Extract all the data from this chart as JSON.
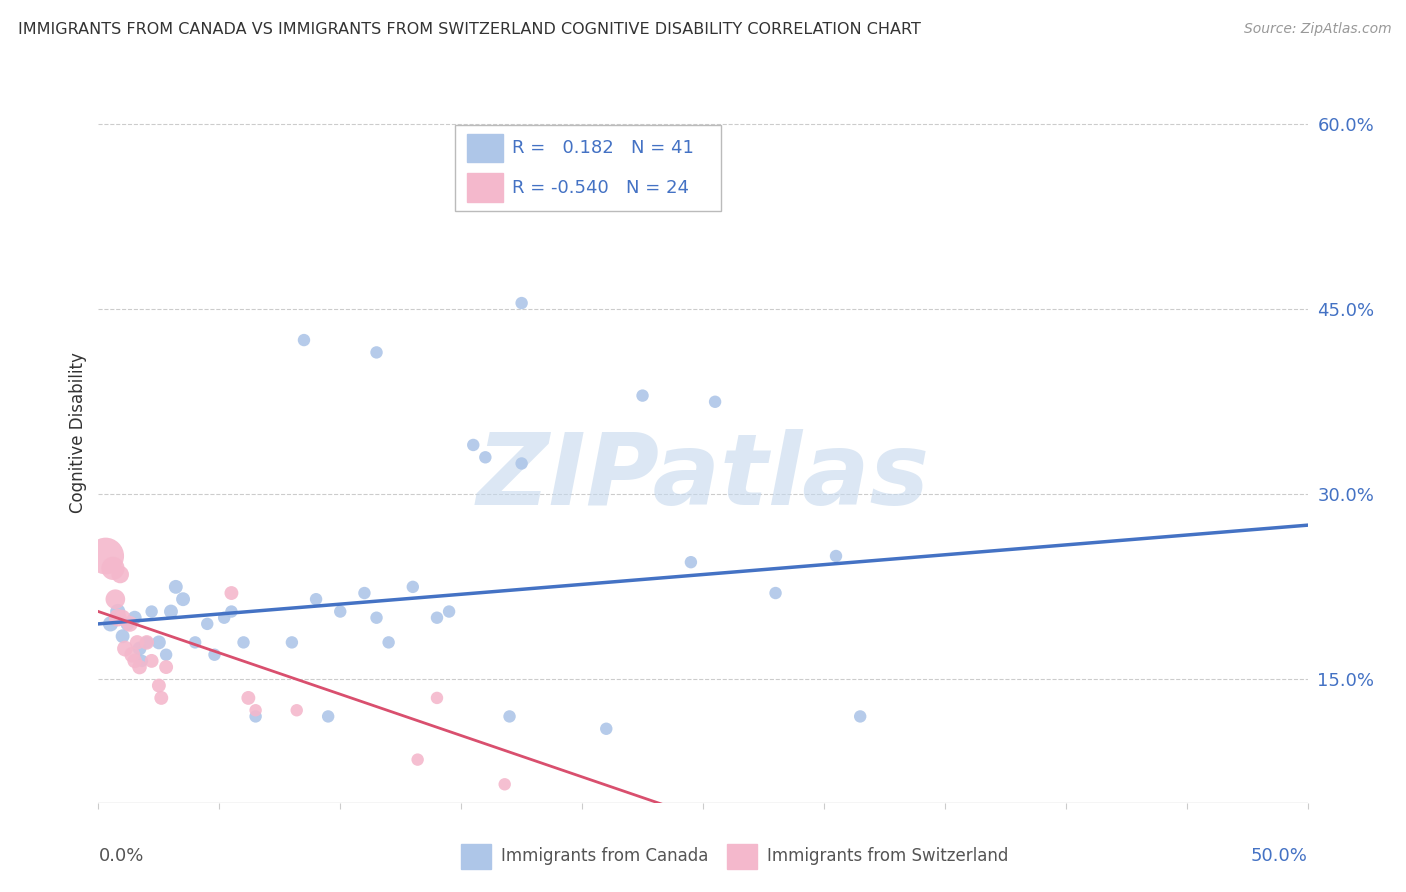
{
  "title": "IMMIGRANTS FROM CANADA VS IMMIGRANTS FROM SWITZERLAND COGNITIVE DISABILITY CORRELATION CHART",
  "source": "Source: ZipAtlas.com",
  "ylabel": "Cognitive Disability",
  "canada_R": "0.182",
  "canada_N": "41",
  "switzerland_R": "-0.540",
  "switzerland_N": "24",
  "canada_color": "#aec6e8",
  "switzerland_color": "#f4b8cc",
  "canada_line_color": "#4472c4",
  "switzerland_line_color": "#d94f6e",
  "background_color": "#ffffff",
  "grid_color": "#cccccc",
  "watermark": "ZIPatlas",
  "xlim": [
    0.0,
    0.5
  ],
  "ylim": [
    0.05,
    0.65
  ],
  "y_ticks": [
    0.15,
    0.3,
    0.45,
    0.6
  ],
  "y_tick_labels": [
    "15.0%",
    "30.0%",
    "45.0%",
    "60.0%"
  ],
  "x_ticks": [
    0.0,
    0.05,
    0.1,
    0.15,
    0.2,
    0.25,
    0.3,
    0.35,
    0.4,
    0.45,
    0.5
  ],
  "canada_trend": [
    0.0,
    0.195,
    0.5,
    0.275
  ],
  "switzerland_trend": [
    0.0,
    0.205,
    0.5,
    -0.13
  ],
  "canada_points": [
    [
      0.005,
      0.195
    ],
    [
      0.008,
      0.205
    ],
    [
      0.01,
      0.185
    ],
    [
      0.012,
      0.195
    ],
    [
      0.015,
      0.2
    ],
    [
      0.017,
      0.175
    ],
    [
      0.018,
      0.165
    ],
    [
      0.02,
      0.18
    ],
    [
      0.022,
      0.205
    ],
    [
      0.025,
      0.18
    ],
    [
      0.028,
      0.17
    ],
    [
      0.03,
      0.205
    ],
    [
      0.032,
      0.225
    ],
    [
      0.035,
      0.215
    ],
    [
      0.04,
      0.18
    ],
    [
      0.045,
      0.195
    ],
    [
      0.048,
      0.17
    ],
    [
      0.052,
      0.2
    ],
    [
      0.055,
      0.205
    ],
    [
      0.06,
      0.18
    ],
    [
      0.065,
      0.12
    ],
    [
      0.08,
      0.18
    ],
    [
      0.09,
      0.215
    ],
    [
      0.095,
      0.12
    ],
    [
      0.1,
      0.205
    ],
    [
      0.11,
      0.22
    ],
    [
      0.115,
      0.2
    ],
    [
      0.12,
      0.18
    ],
    [
      0.13,
      0.225
    ],
    [
      0.14,
      0.2
    ],
    [
      0.145,
      0.205
    ],
    [
      0.155,
      0.34
    ],
    [
      0.16,
      0.33
    ],
    [
      0.17,
      0.12
    ],
    [
      0.175,
      0.325
    ],
    [
      0.21,
      0.11
    ],
    [
      0.225,
      0.38
    ],
    [
      0.245,
      0.245
    ],
    [
      0.28,
      0.22
    ],
    [
      0.305,
      0.25
    ],
    [
      0.315,
      0.12
    ]
  ],
  "canada_high_points": [
    [
      0.085,
      0.425
    ],
    [
      0.115,
      0.415
    ],
    [
      0.175,
      0.455
    ],
    [
      0.255,
      0.375
    ]
  ],
  "canada_point_sizes": [
    120,
    120,
    100,
    100,
    100,
    100,
    80,
    80,
    80,
    100,
    80,
    100,
    100,
    100,
    80,
    80,
    80,
    80,
    80,
    80,
    80,
    80,
    80,
    80,
    80,
    80,
    80,
    80,
    80,
    80,
    80,
    80,
    80,
    80,
    80,
    80,
    80,
    80,
    80,
    80,
    80
  ],
  "canada_high_sizes": [
    80,
    80,
    80,
    80
  ],
  "switzerland_points": [
    [
      0.003,
      0.25
    ],
    [
      0.006,
      0.24
    ],
    [
      0.007,
      0.215
    ],
    [
      0.008,
      0.2
    ],
    [
      0.009,
      0.235
    ],
    [
      0.01,
      0.2
    ],
    [
      0.011,
      0.175
    ],
    [
      0.013,
      0.195
    ],
    [
      0.014,
      0.17
    ],
    [
      0.015,
      0.165
    ],
    [
      0.016,
      0.18
    ],
    [
      0.017,
      0.16
    ],
    [
      0.02,
      0.18
    ],
    [
      0.022,
      0.165
    ],
    [
      0.025,
      0.145
    ],
    [
      0.026,
      0.135
    ],
    [
      0.028,
      0.16
    ],
    [
      0.055,
      0.22
    ],
    [
      0.062,
      0.135
    ],
    [
      0.065,
      0.125
    ],
    [
      0.082,
      0.125
    ],
    [
      0.132,
      0.085
    ],
    [
      0.14,
      0.135
    ],
    [
      0.168,
      0.065
    ]
  ],
  "switzerland_sizes": [
    700,
    280,
    200,
    160,
    160,
    130,
    130,
    130,
    130,
    110,
    110,
    110,
    110,
    100,
    100,
    100,
    100,
    100,
    100,
    80,
    80,
    80,
    80,
    80
  ]
}
